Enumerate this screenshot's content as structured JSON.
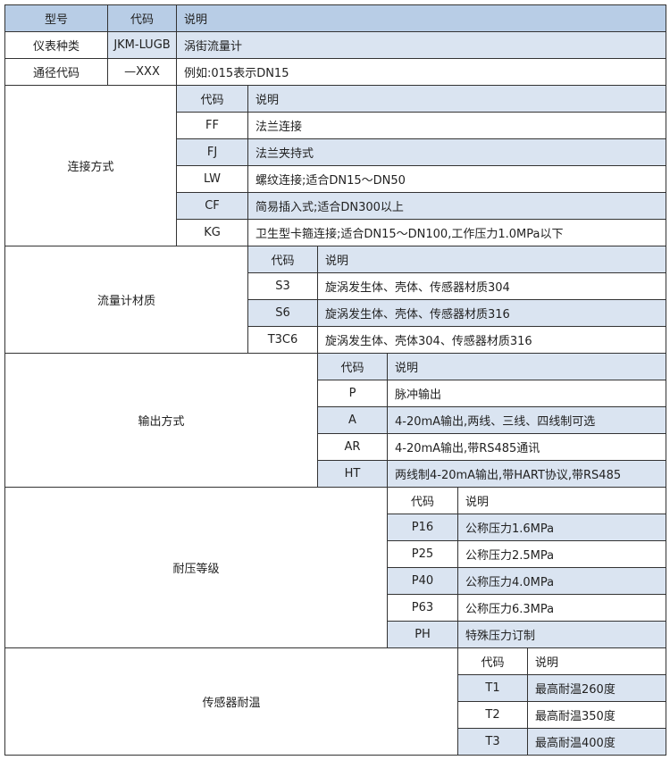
{
  "top": {
    "header": {
      "model": "型号",
      "code": "代码",
      "desc": "说明"
    },
    "rows": [
      {
        "label": "仪表种类",
        "code": "JKM-LUGB",
        "desc": "涡街流量计"
      },
      {
        "label": "通径代码",
        "code": "—XXX",
        "desc": "例如:015表示DN15"
      }
    ]
  },
  "sections": [
    {
      "label": "连接方式",
      "code_header": "代码",
      "desc_header": "说明",
      "header_shaded": true,
      "rows": [
        {
          "code": "FF",
          "desc": "法兰连接",
          "shaded": false
        },
        {
          "code": "FJ",
          "desc": "法兰夹持式",
          "shaded": true
        },
        {
          "code": "LW",
          "desc": "螺纹连接;适合DN15～DN50",
          "shaded": false
        },
        {
          "code": "CF",
          "desc": "简易插入式;适合DN300以上",
          "shaded": true
        },
        {
          "code": "KG",
          "desc": "卫生型卡箍连接;适合DN15～DN100,工作压力1.0MPa以下",
          "shaded": false
        }
      ]
    },
    {
      "label": "流量计材质",
      "code_header": "代码",
      "desc_header": "说明",
      "header_shaded": true,
      "rows": [
        {
          "code": "S3",
          "desc": "旋涡发生体、壳体、传感器材质304",
          "shaded": false
        },
        {
          "code": "S6",
          "desc": "旋涡发生体、壳体、传感器材质316",
          "shaded": true
        },
        {
          "code": "T3C6",
          "desc": "旋涡发生体、壳体304、传感器材质316",
          "shaded": false
        }
      ]
    },
    {
      "label": "输出方式",
      "code_header": "代码",
      "desc_header": "说明",
      "header_shaded": true,
      "rows": [
        {
          "code": "P",
          "desc": "脉冲输出",
          "shaded": false
        },
        {
          "code": "A",
          "desc": "4-20mA输出,两线、三线、四线制可选",
          "shaded": true
        },
        {
          "code": "AR",
          "desc": "4-20mA输出,带RS485通讯",
          "shaded": false
        },
        {
          "code": "HT",
          "desc": "两线制4-20mA输出,带HART协议,带RS485",
          "shaded": true
        }
      ]
    },
    {
      "label": "耐压等级",
      "code_header": "代码",
      "desc_header": "说明",
      "header_shaded": false,
      "rows": [
        {
          "code": "P16",
          "desc": "公称压力1.6MPa",
          "shaded": true
        },
        {
          "code": "P25",
          "desc": "公称压力2.5MPa",
          "shaded": false
        },
        {
          "code": "P40",
          "desc": "公称压力4.0MPa",
          "shaded": true
        },
        {
          "code": "P63",
          "desc": "公称压力6.3MPa",
          "shaded": false
        },
        {
          "code": "PH",
          "desc": "特殊压力订制",
          "shaded": true
        }
      ]
    },
    {
      "label": "传感器耐温",
      "code_header": "代码",
      "desc_header": "说明",
      "header_shaded": false,
      "rows": [
        {
          "code": "T1",
          "desc": "最高耐温260度",
          "shaded": true
        },
        {
          "code": "T2",
          "desc": "最高耐温350度",
          "shaded": false
        },
        {
          "code": "T3",
          "desc": "最高耐温400度",
          "shaded": true
        }
      ]
    }
  ]
}
